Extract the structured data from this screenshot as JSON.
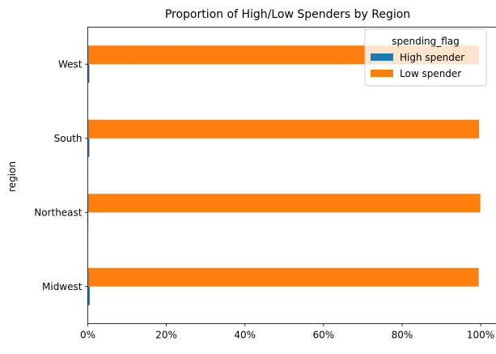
{
  "chart_data": {
    "type": "bar",
    "orientation": "horizontal",
    "title": "Proportion of High/Low Spenders by Region",
    "xlabel": "",
    "ylabel": "region",
    "categories": [
      "Midwest",
      "Northeast",
      "South",
      "West"
    ],
    "series": [
      {
        "name": "High spender",
        "color": "#1f77b4",
        "values": [
          0.005,
          0.001,
          0.004,
          0.004
        ]
      },
      {
        "name": "Low spender",
        "color": "#ff7f0e",
        "values": [
          0.995,
          0.999,
          0.996,
          0.996
        ]
      }
    ],
    "xlim": [
      0,
      1.04
    ],
    "xticks": [
      0,
      0.2,
      0.4,
      0.6,
      0.8,
      1.0
    ],
    "xtick_labels": [
      "0%",
      "20%",
      "40%",
      "60%",
      "80%",
      "100%"
    ],
    "x_format": "percent",
    "legend": {
      "title": "spending_flag",
      "placement": "upper-right",
      "entries": [
        "High spender",
        "Low spender"
      ]
    },
    "grid": false
  }
}
